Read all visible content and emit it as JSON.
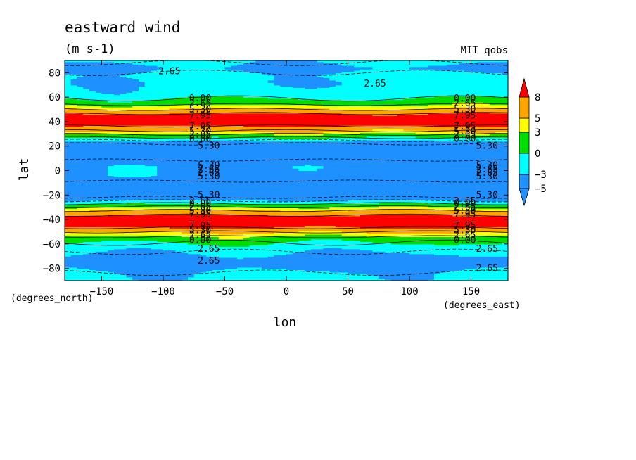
{
  "chart_data": {
    "type": "heatmap",
    "title": "eastward wind",
    "subtitle": "(m s-1)",
    "source_label": "MIT_qobs",
    "xlabel": "lon",
    "ylabel": "lat",
    "x_units": "(degrees_east)",
    "y_units": "(degrees_north)",
    "xlim": [
      -180,
      180
    ],
    "ylim": [
      -90,
      90
    ],
    "x_ticks": [
      -150,
      -100,
      -50,
      0,
      50,
      100,
      150
    ],
    "y_ticks": [
      -80,
      -60,
      -40,
      -20,
      0,
      20,
      40,
      60,
      80
    ],
    "colorbar": {
      "ticks": [
        8,
        5,
        3,
        0,
        -3,
        -5
      ],
      "range": [
        -8,
        10.5
      ],
      "levels": [
        {
          "min": -8,
          "max": -5,
          "color": "#1e90ff"
        },
        {
          "min": -5,
          "max": -3,
          "color": "#1e90ff"
        },
        {
          "min": -3,
          "max": 0,
          "color": "#00ffff"
        },
        {
          "min": 0,
          "max": 3,
          "color": "#00dd00"
        },
        {
          "min": 3,
          "max": 5,
          "color": "#ffff00"
        },
        {
          "min": 5,
          "max": 8,
          "color": "#ffa500"
        },
        {
          "min": 8,
          "max": 10.5,
          "color": "#ff0000"
        }
      ]
    },
    "zonal_profile": {
      "lat": [
        -90,
        -84,
        -78,
        -72,
        -66,
        -62,
        -58,
        -55,
        -52,
        -49,
        -46,
        -42,
        -38,
        -35,
        -32,
        -30,
        -28,
        -26,
        -24,
        -21,
        -16,
        -10,
        -6,
        -4,
        -2,
        0,
        2,
        4,
        6,
        10,
        16,
        21,
        24,
        26,
        28,
        30,
        32,
        35,
        38,
        42,
        46,
        49,
        52,
        55,
        58,
        62,
        66,
        72,
        78,
        84,
        90
      ],
      "u": [
        -2,
        -2.5,
        -4.5,
        -4.5,
        -2.5,
        -1.5,
        0.5,
        2,
        4,
        6,
        8.5,
        10,
        9.5,
        6.5,
        5,
        3,
        1,
        -1,
        -3.5,
        -6,
        -6,
        -6,
        -4,
        -3.5,
        -3.5,
        -3.5,
        -3.5,
        -3.5,
        -4,
        -6,
        -6,
        -6,
        -3.5,
        -1,
        1,
        3,
        5,
        6.5,
        9.5,
        10,
        8.5,
        6,
        4,
        2,
        0.5,
        -1.5,
        -2,
        -2.5,
        -2,
        -4,
        -2
      ]
    },
    "contour_labels": [
      {
        "text": "2.65",
        "lon": -95,
        "lat": 81
      },
      {
        "text": "2.65",
        "lon": 72,
        "lat": 71
      },
      {
        "text": "0.00",
        "lon": -70,
        "lat": 59
      },
      {
        "text": "2.65",
        "lon": -70,
        "lat": 55
      },
      {
        "text": "5.30",
        "lon": -70,
        "lat": 50
      },
      {
        "text": "7.95",
        "lon": -70,
        "lat": 45
      },
      {
        "text": "7.95",
        "lon": -70,
        "lat": 36
      },
      {
        "text": "5.30",
        "lon": -70,
        "lat": 32
      },
      {
        "text": "2.65",
        "lon": -70,
        "lat": 29
      },
      {
        "text": "0.00",
        "lon": -70,
        "lat": 26
      },
      {
        "text": "5.30",
        "lon": -63,
        "lat": 20
      },
      {
        "text": "5.30",
        "lon": -63,
        "lat": 4
      },
      {
        "text": "2.65",
        "lon": -63,
        "lat": 1
      },
      {
        "text": "2.65",
        "lon": -63,
        "lat": -2
      },
      {
        "text": "5.30",
        "lon": -63,
        "lat": -5
      },
      {
        "text": "5.30",
        "lon": -63,
        "lat": -20
      },
      {
        "text": "2.65",
        "lon": -70,
        "lat": -25
      },
      {
        "text": "0.00",
        "lon": -70,
        "lat": -27
      },
      {
        "text": "2.65",
        "lon": -70,
        "lat": -30
      },
      {
        "text": "5.30",
        "lon": -70,
        "lat": -33
      },
      {
        "text": "7.95",
        "lon": -70,
        "lat": -36
      },
      {
        "text": "7.95",
        "lon": -70,
        "lat": -45
      },
      {
        "text": "5.30",
        "lon": -70,
        "lat": -49
      },
      {
        "text": "2.65",
        "lon": -70,
        "lat": -53
      },
      {
        "text": "0.00",
        "lon": -70,
        "lat": -57
      },
      {
        "text": "2.65",
        "lon": -63,
        "lat": -64
      },
      {
        "text": "2.65",
        "lon": -63,
        "lat": -74
      },
      {
        "text": "0.00",
        "lon": 145,
        "lat": 59
      },
      {
        "text": "2.65",
        "lon": 145,
        "lat": 55
      },
      {
        "text": "5.30",
        "lon": 145,
        "lat": 50
      },
      {
        "text": "7.95",
        "lon": 145,
        "lat": 45
      },
      {
        "text": "7.95",
        "lon": 145,
        "lat": 36
      },
      {
        "text": "5.30",
        "lon": 145,
        "lat": 32
      },
      {
        "text": "2.65",
        "lon": 145,
        "lat": 29
      },
      {
        "text": "0.00",
        "lon": 145,
        "lat": 26
      },
      {
        "text": "5.30",
        "lon": 163,
        "lat": 20
      },
      {
        "text": "5.30",
        "lon": 163,
        "lat": 4
      },
      {
        "text": "2.65",
        "lon": 163,
        "lat": 1
      },
      {
        "text": "2.65",
        "lon": 163,
        "lat": -2
      },
      {
        "text": "5.30",
        "lon": 163,
        "lat": -5
      },
      {
        "text": "5.30",
        "lon": 163,
        "lat": -20
      },
      {
        "text": "2.65",
        "lon": 145,
        "lat": -25
      },
      {
        "text": "0.00",
        "lon": 145,
        "lat": -27
      },
      {
        "text": "2.65",
        "lon": 145,
        "lat": -30
      },
      {
        "text": "5.30",
        "lon": 145,
        "lat": -33
      },
      {
        "text": "7.95",
        "lon": 145,
        "lat": -36
      },
      {
        "text": "7.95",
        "lon": 145,
        "lat": -45
      },
      {
        "text": "5.30",
        "lon": 145,
        "lat": -49
      },
      {
        "text": "2.65",
        "lon": 145,
        "lat": -53
      },
      {
        "text": "0.00",
        "lon": 145,
        "lat": -57
      },
      {
        "text": "2.65",
        "lon": 163,
        "lat": -64
      },
      {
        "text": "2.65",
        "lon": 163,
        "lat": -80
      }
    ]
  }
}
